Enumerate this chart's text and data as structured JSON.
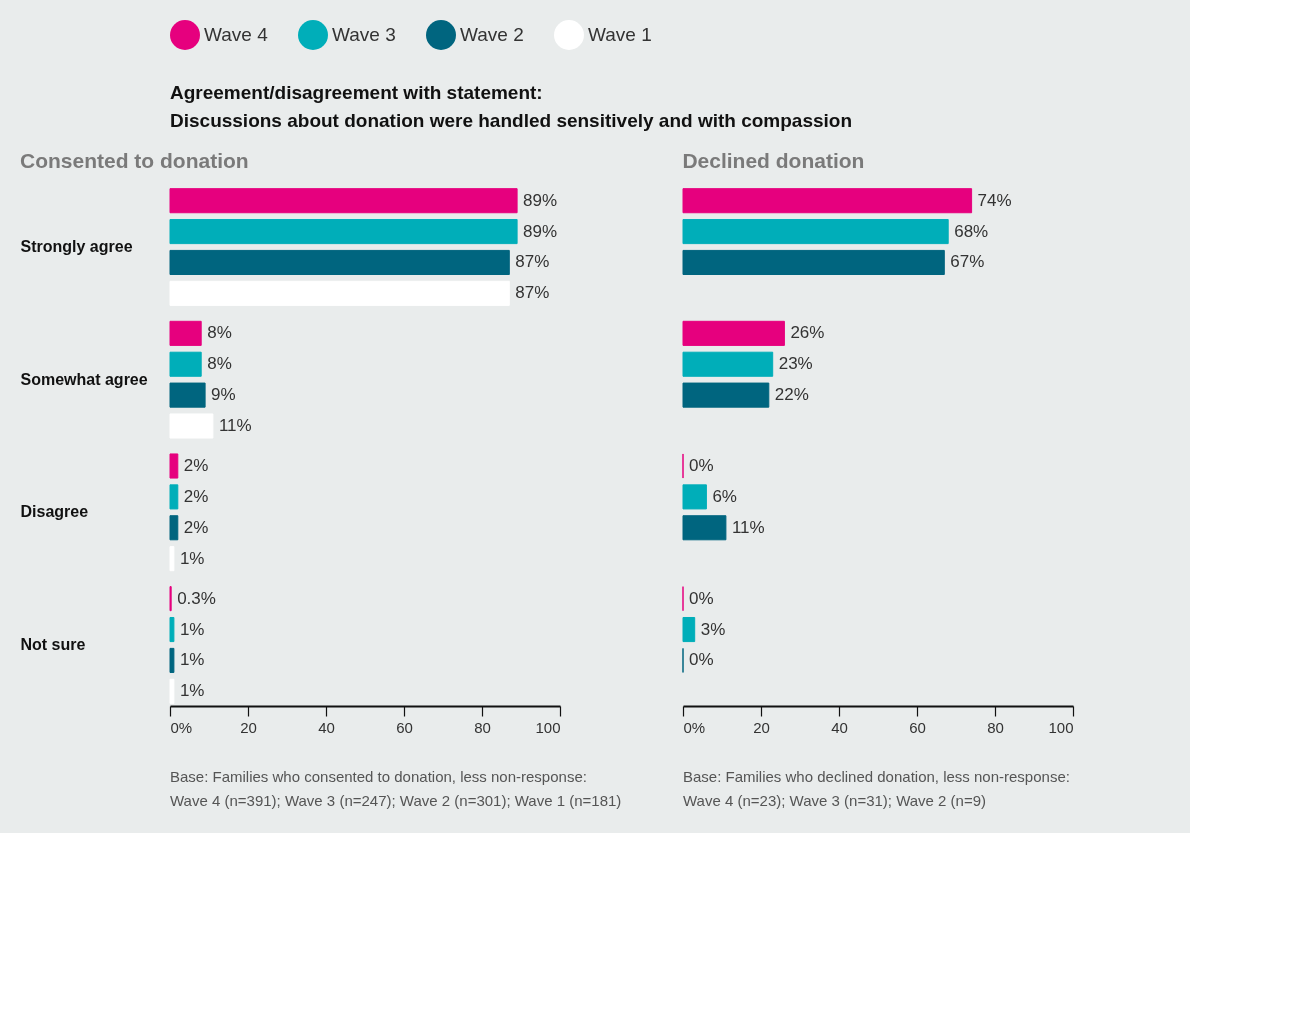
{
  "chart_data": [
    {
      "type": "other",
      "title": "Agreement/disagreement with statement:",
      "subtitle": "Discussions about donation were handled sensitively and with compassion"
    },
    {
      "type": "bar",
      "orientation": "horizontal",
      "title": "Consented to donation",
      "legend": "top",
      "categories": [
        "Strongly agree",
        "Somewhat agree",
        "Disagree",
        "Not sure"
      ],
      "xlim": [
        0,
        100
      ],
      "xticks": [
        {
          "value": 0,
          "label": "0%"
        },
        20,
        40,
        60,
        80,
        100
      ],
      "series": [
        {
          "name": "Wave 4",
          "color": "#e6007e",
          "values": [
            89,
            8,
            2,
            0.3
          ],
          "value_labels": [
            "89%",
            "8%",
            "2%",
            "0.3%"
          ]
        },
        {
          "name": "Wave 3",
          "color": "#00aeb9",
          "values": [
            89,
            8,
            2,
            1
          ],
          "value_labels": [
            "89%",
            "8%",
            "2%",
            "1%"
          ]
        },
        {
          "name": "Wave 2",
          "color": "#00657f",
          "values": [
            87,
            9,
            2,
            1
          ],
          "value_labels": [
            "87%",
            "9%",
            "2%",
            "1%"
          ]
        },
        {
          "name": "Wave 1",
          "color": "#ffffff",
          "values": [
            87,
            11,
            1,
            1
          ],
          "value_labels": [
            "87%",
            "11%",
            "1%",
            "1%"
          ]
        }
      ],
      "annotations": [
        "Base: Families who consented to donation, less non-response:",
        "Wave 4 (n=391); Wave 3 (n=247); Wave 2 (n=301); Wave 1 (n=181)"
      ]
    },
    {
      "type": "bar",
      "orientation": "horizontal",
      "title": "Declined donation",
      "tick_labels": "x",
      "categories": [
        null,
        null,
        null,
        null
      ],
      "xlim": [
        0,
        100
      ],
      "xticks": [
        {
          "value": 0,
          "label": "0%"
        },
        20,
        40,
        60,
        80,
        100
      ],
      "series": [
        {
          "name": "Wave 4",
          "color": "#e6007e",
          "values": [
            74,
            26,
            0,
            0
          ],
          "value_labels": [
            "74%",
            "26%",
            "0%",
            "0%"
          ]
        },
        {
          "name": "Wave 3",
          "color": "#00aeb9",
          "values": [
            68,
            23,
            6,
            3
          ],
          "value_labels": [
            "68%",
            "23%",
            "6%",
            "3%"
          ]
        },
        {
          "name": "Wave 2",
          "color": "#00657f",
          "values": [
            67,
            22,
            11,
            0
          ],
          "value_labels": [
            "67%",
            "22%",
            "11%",
            "0%"
          ]
        }
      ],
      "annotations": [
        "Base: Families who declined donation, less non-response:",
        "Wave 4 (n=23); Wave 3 (n=31); Wave 2 (n=9)"
      ]
    }
  ]
}
